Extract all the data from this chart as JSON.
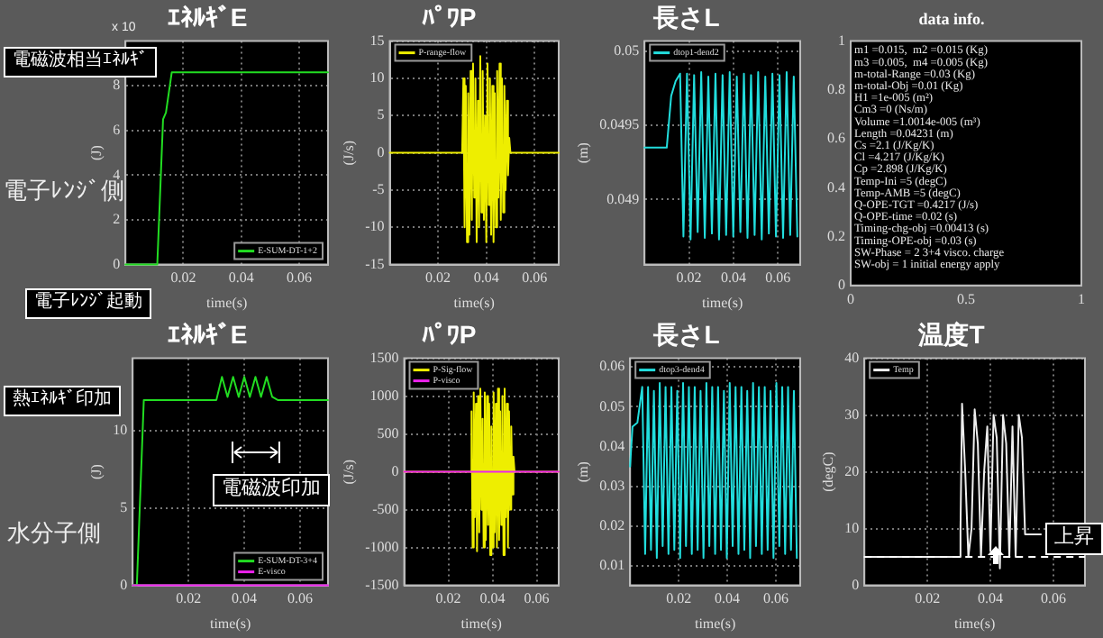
{
  "chart_data": [
    {
      "type": "line",
      "title": "ｴﾈﾙｷﾞE",
      "xlabel": "time(s)",
      "ylabel": "(J)",
      "x": [
        0,
        0.011,
        0.013,
        0.014,
        0.016,
        0.07
      ],
      "xlim": [
        0,
        0.07
      ],
      "xticks": [
        0.02,
        0.04,
        0.06
      ],
      "ylim": [
        0,
        10
      ],
      "yticks": [
        0,
        2,
        4,
        6,
        8
      ],
      "grid": true,
      "legend": "bottom right",
      "annotations": [
        "x 10",
        "電磁波相当ｴﾈﾙｷﾞ",
        "電子ﾚﾝｼﾞ起動",
        "電子ﾚﾝｼﾞ側"
      ],
      "series": [
        {
          "name": "E-SUM-DT-1+2",
          "color": "#22dd22",
          "values": [
            0,
            0,
            6.5,
            6.8,
            8.6,
            8.6
          ]
        }
      ]
    },
    {
      "type": "line",
      "title": "ﾊﾟﾜP",
      "xlabel": "time(s)",
      "ylabel": "(J/s)",
      "x": [
        0,
        0.03,
        0.0305,
        0.031,
        0.0315,
        0.032,
        0.0325,
        0.033,
        0.0335,
        0.034,
        0.0345,
        0.035,
        0.0355,
        0.036,
        0.0365,
        0.037,
        0.0375,
        0.038,
        0.0385,
        0.039,
        0.0395,
        0.04,
        0.0405,
        0.041,
        0.0415,
        0.042,
        0.0425,
        0.043,
        0.0435,
        0.044,
        0.0445,
        0.045,
        0.0455,
        0.046,
        0.0465,
        0.047,
        0.0475,
        0.048,
        0.0485,
        0.049,
        0.0495,
        0.05,
        0.07
      ],
      "xlim": [
        0,
        0.07
      ],
      "xticks": [
        0.02,
        0.04,
        0.06
      ],
      "ylim": [
        -15,
        15
      ],
      "yticks": [
        -15,
        -10,
        -5,
        0,
        5,
        10,
        15
      ],
      "grid": true,
      "legend": "top left",
      "series": [
        {
          "name": "P-range-flow",
          "color": "#eeee00",
          "values": [
            0,
            0,
            10,
            -10,
            9,
            -12,
            8,
            -11,
            11,
            -9,
            12,
            -6,
            10,
            -12,
            7,
            -10,
            13,
            -8,
            11,
            -9,
            5,
            -12,
            12,
            -7,
            10,
            -11,
            9,
            -12,
            8,
            -10,
            11,
            -6,
            12,
            -9,
            10,
            -8,
            9,
            -5,
            7,
            -3,
            2,
            0,
            0
          ]
        }
      ]
    },
    {
      "type": "line",
      "title": "長さL",
      "xlabel": "time(s)",
      "ylabel": "(m)",
      "x": [
        0,
        0.01,
        0.012,
        0.014,
        0.016,
        0.0175,
        0.0191,
        0.0207,
        0.0223,
        0.0239,
        0.0255,
        0.0271,
        0.0287,
        0.0303,
        0.0319,
        0.0335,
        0.0351,
        0.0367,
        0.0383,
        0.0399,
        0.0415,
        0.0431,
        0.0447,
        0.0463,
        0.0479,
        0.0495,
        0.0511,
        0.0527,
        0.0543,
        0.0559,
        0.0575,
        0.0591,
        0.0607,
        0.0623,
        0.0639,
        0.0655,
        0.0671,
        0.0687
      ],
      "xlim": [
        0,
        0.07
      ],
      "xticks": [
        0.02,
        0.04,
        0.06
      ],
      "ylim": [
        0.04856,
        0.05007
      ],
      "yticks": [
        0.049,
        0.0495,
        0.05
      ],
      "grid": true,
      "legend": "top left",
      "series": [
        {
          "name": "dtop1-dend2",
          "color": "#22dddd",
          "values": [
            0.04935,
            0.04935,
            0.0497,
            0.0498,
            0.04985,
            0.04875,
            0.04985,
            0.04873,
            0.04984,
            0.04878,
            0.04986,
            0.04874,
            0.04983,
            0.04877,
            0.04985,
            0.04873,
            0.04984,
            0.04876,
            0.04986,
            0.04875,
            0.04983,
            0.04878,
            0.04985,
            0.04874,
            0.04984,
            0.04876,
            0.04986,
            0.04873,
            0.04983,
            0.04877,
            0.04985,
            0.04875,
            0.04984,
            0.04874,
            0.04986,
            0.04876,
            0.04983,
            0.04875
          ]
        }
      ]
    },
    {
      "type": "scatter",
      "title": "data info.",
      "xlim": [
        0,
        1
      ],
      "ylim": [
        0,
        1
      ],
      "xticks": [
        0,
        0.5,
        1
      ],
      "yticks": [
        0,
        0.2,
        0.4,
        0.6,
        0.8,
        1
      ],
      "annotations": [
        "m1 =0.015,  m2 =0.015 (Kg)",
        "m3 =0.005,  m4 =0.005 (Kg)",
        "m-total-Range =0.03 (Kg)",
        "m-total-Obj =0.01 (Kg)",
        "H1 =1e-005 (m²)",
        "Cm3 =0 (Ns/m)",
        "Volume =1.0014e-005 (m³)",
        "Length =0.04231 (m)",
        "Cs =2.1 (J/Kg/K)",
        "Cl =4.217 (J/Kg/K)",
        "Cp =2.898 (J/Kg/K)",
        "Temp-Ini =5 (degC)",
        "Temp-AMB =5 (degC)",
        "Q-OPE-TGT =0.4217 (J/s)",
        "Q-OPE-time =0.02 (s)",
        "Timing-chg-obj =0.00413 (s)",
        "Timing-OPE-obj =0.03 (s)",
        "SW-Phase = 2 3+4 visco. charge",
        "SW-obj = 1 initial energy apply"
      ]
    },
    {
      "type": "line",
      "title": "ｴﾈﾙｷﾞE",
      "xlabel": "time(s)",
      "ylabel": "(J)",
      "xlim": [
        0,
        0.07
      ],
      "xticks": [
        0.02,
        0.04,
        0.06
      ],
      "ylim": [
        0,
        14.7
      ],
      "yticks": [
        0,
        5,
        10
      ],
      "grid": true,
      "legend": "bottom right",
      "annotations": [
        "熱ｴﾈﾙｷﾞ印加",
        "電磁波印加",
        "水分子側"
      ],
      "series": [
        {
          "name": "E-SUM-DT-3+4",
          "color": "#22dd22",
          "x": [
            0,
            0.0015,
            0.004,
            0.03,
            0.032,
            0.034,
            0.036,
            0.038,
            0.04,
            0.042,
            0.044,
            0.046,
            0.048,
            0.05,
            0.052,
            0.07
          ],
          "values": [
            0,
            0,
            12,
            12,
            13.5,
            12.2,
            13.5,
            12.2,
            13.5,
            12.2,
            13.5,
            12.2,
            13.5,
            12.2,
            12,
            12
          ]
        },
        {
          "name": "E-visco",
          "color": "#ee22ee",
          "x": [
            0,
            0.07
          ],
          "values": [
            0,
            0
          ]
        }
      ]
    },
    {
      "type": "line",
      "title": "ﾊﾟﾜP",
      "xlabel": "time(s)",
      "ylabel": "(J/s)",
      "xlim": [
        0,
        0.07
      ],
      "xticks": [
        0.02,
        0.04,
        0.06
      ],
      "ylim": [
        -1500,
        1500
      ],
      "yticks": [
        -1500,
        -1000,
        -500,
        0,
        500,
        1000,
        1500
      ],
      "grid": true,
      "legend": "top left",
      "series": [
        {
          "name": "P-Sig-flow",
          "color": "#eeee00",
          "x": [
            0,
            0.03,
            0.0305,
            0.031,
            0.0315,
            0.032,
            0.0325,
            0.033,
            0.0335,
            0.034,
            0.0345,
            0.035,
            0.0355,
            0.036,
            0.0365,
            0.037,
            0.0375,
            0.038,
            0.0385,
            0.039,
            0.0395,
            0.04,
            0.0405,
            0.041,
            0.0415,
            0.042,
            0.0425,
            0.043,
            0.0435,
            0.044,
            0.0445,
            0.045,
            0.0455,
            0.046,
            0.0465,
            0.047,
            0.0475,
            0.048,
            0.0485,
            0.049,
            0.0495,
            0.05,
            0.07
          ],
          "values": [
            0,
            0,
            800,
            -1000,
            1050,
            -600,
            900,
            -1050,
            1000,
            -800,
            1100,
            -500,
            700,
            -1000,
            1050,
            -900,
            1000,
            -700,
            900,
            -1100,
            600,
            -1000,
            1050,
            -800,
            900,
            -1000,
            1100,
            -900,
            800,
            -700,
            1000,
            -1100,
            1100,
            -600,
            900,
            -1000,
            800,
            -500,
            600,
            -300,
            200,
            0,
            0
          ]
        },
        {
          "name": "P-visco",
          "color": "#ee22ee",
          "x": [
            0,
            0.07
          ],
          "values": [
            0,
            0
          ]
        }
      ]
    },
    {
      "type": "line",
      "title": "長さL",
      "xlabel": "time(s)",
      "ylabel": "(m)",
      "x": [
        0,
        0.001,
        0.003,
        0.005,
        0.0062,
        0.0074,
        0.0086,
        0.0098,
        0.011,
        0.0122,
        0.0134,
        0.0146,
        0.0158,
        0.017,
        0.0182,
        0.0194,
        0.0206,
        0.0218,
        0.023,
        0.0242,
        0.0254,
        0.0266,
        0.0278,
        0.029,
        0.0302,
        0.0314,
        0.0326,
        0.0338,
        0.035,
        0.0362,
        0.0374,
        0.0386,
        0.0398,
        0.041,
        0.0422,
        0.0434,
        0.0446,
        0.0458,
        0.047,
        0.0482,
        0.0494,
        0.0506,
        0.0518,
        0.053,
        0.0542,
        0.0554,
        0.0566,
        0.0578,
        0.059,
        0.0602,
        0.0614,
        0.0626,
        0.0638,
        0.065,
        0.0662,
        0.0674,
        0.0686
      ],
      "xlim": [
        0,
        0.07
      ],
      "xticks": [
        0.02,
        0.04,
        0.06
      ],
      "ylim": [
        0.0051,
        0.0622
      ],
      "yticks": [
        0.01,
        0.02,
        0.03,
        0.04,
        0.05,
        0.06
      ],
      "grid": true,
      "legend": "top left",
      "series": [
        {
          "name": "dtop3-dend4",
          "color": "#22dddd",
          "values": [
            0.035,
            0.045,
            0.046,
            0.055,
            0.013,
            0.055,
            0.014,
            0.054,
            0.012,
            0.056,
            0.015,
            0.055,
            0.013,
            0.055,
            0.014,
            0.054,
            0.012,
            0.056,
            0.015,
            0.055,
            0.013,
            0.055,
            0.014,
            0.054,
            0.012,
            0.056,
            0.015,
            0.055,
            0.013,
            0.055,
            0.014,
            0.054,
            0.012,
            0.056,
            0.015,
            0.055,
            0.013,
            0.055,
            0.014,
            0.054,
            0.012,
            0.056,
            0.015,
            0.055,
            0.013,
            0.055,
            0.014,
            0.054,
            0.012,
            0.056,
            0.015,
            0.055,
            0.013,
            0.055,
            0.014,
            0.054,
            0.012
          ]
        }
      ]
    },
    {
      "type": "line",
      "title": "温度T",
      "xlabel": "time(s)",
      "ylabel": "(degC)",
      "x": [
        0,
        0.03,
        0.0305,
        0.031,
        0.032,
        0.033,
        0.034,
        0.035,
        0.036,
        0.037,
        0.038,
        0.039,
        0.04,
        0.041,
        0.042,
        0.043,
        0.044,
        0.045,
        0.046,
        0.047,
        0.048,
        0.049,
        0.05,
        0.051,
        0.056
      ],
      "xlim": [
        0,
        0.07
      ],
      "xticks": [
        0.02,
        0.04,
        0.06
      ],
      "ylim": [
        0,
        40
      ],
      "yticks": [
        0,
        10,
        20,
        30,
        40
      ],
      "grid": true,
      "legend": "top left",
      "annotations": [
        "上昇"
      ],
      "ref_lines": [
        {
          "axis": "y",
          "value": 5,
          "color": "#ffffff",
          "line_style": "dashed"
        }
      ],
      "series": [
        {
          "name": "Temp",
          "color": "#eeeeee",
          "values": [
            5,
            5,
            10,
            32,
            20,
            5,
            10,
            31,
            25,
            5,
            20,
            28,
            6,
            30,
            26,
            3,
            30,
            25,
            5,
            28,
            5,
            30,
            26,
            9,
            9
          ]
        }
      ]
    }
  ]
}
